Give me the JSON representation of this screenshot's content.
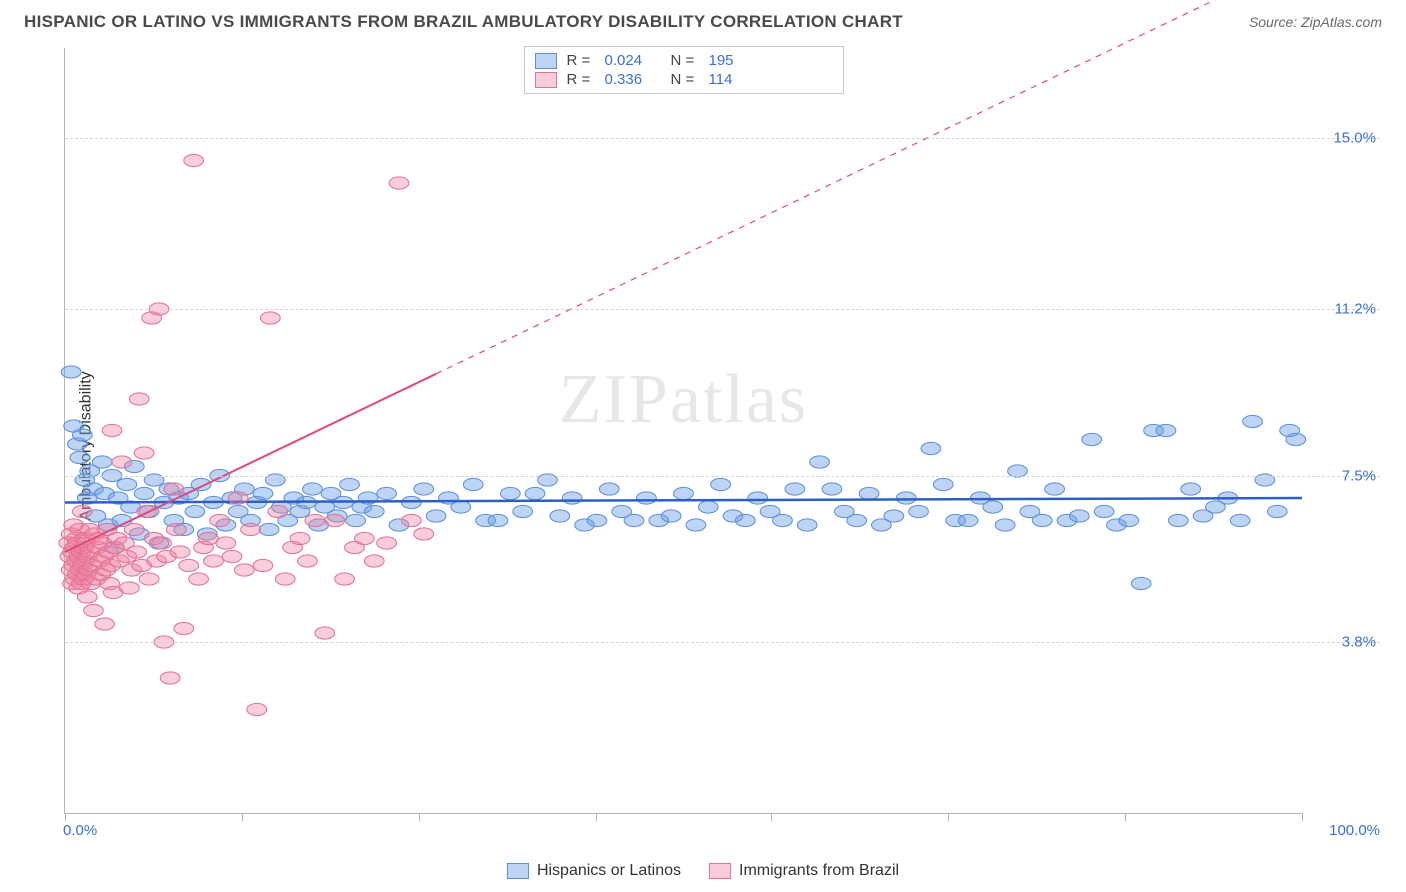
{
  "title": "HISPANIC OR LATINO VS IMMIGRANTS FROM BRAZIL AMBULATORY DISABILITY CORRELATION CHART",
  "source": "Source: ZipAtlas.com",
  "watermark": "ZIPatlas",
  "ylabel": "Ambulatory Disability",
  "chart": {
    "type": "scatter",
    "xlim": [
      0,
      100
    ],
    "ylim": [
      0,
      17
    ],
    "x_tick_positions": [
      0,
      14.3,
      28.6,
      42.9,
      57.1,
      71.4,
      85.7,
      100
    ],
    "x_labels": {
      "min": "0.0%",
      "max": "100.0%"
    },
    "y_gridlines": [
      {
        "value": 3.8,
        "label": "3.8%"
      },
      {
        "value": 7.5,
        "label": "7.5%"
      },
      {
        "value": 11.2,
        "label": "11.2%"
      },
      {
        "value": 15.0,
        "label": "15.0%"
      }
    ],
    "background_color": "#ffffff",
    "grid_color": "#d5d5d5",
    "axis_color": "#b5b5b5",
    "point_radius": 8,
    "series": [
      {
        "name": "Hispanics or Latinos",
        "fill_color": "rgba(108,160,232,0.45)",
        "stroke_color": "#5a8fd8",
        "R": "0.024",
        "N": "195",
        "trend": {
          "x1": 0,
          "y1": 6.9,
          "x2": 100,
          "y2": 7.0,
          "solid_until_x": 100,
          "color": "#2b5fc7",
          "width": 2.5
        },
        "points": [
          [
            0.5,
            9.8
          ],
          [
            0.7,
            8.6
          ],
          [
            1.0,
            8.2
          ],
          [
            1.2,
            7.9
          ],
          [
            1.4,
            8.4
          ],
          [
            1.6,
            7.4
          ],
          [
            1.8,
            7.0
          ],
          [
            2.0,
            7.6
          ],
          [
            2.3,
            7.2
          ],
          [
            2.5,
            6.6
          ],
          [
            3.0,
            7.8
          ],
          [
            3.2,
            7.1
          ],
          [
            3.5,
            6.4
          ],
          [
            3.8,
            7.5
          ],
          [
            4.0,
            5.9
          ],
          [
            4.3,
            7.0
          ],
          [
            4.6,
            6.5
          ],
          [
            5.0,
            7.3
          ],
          [
            5.3,
            6.8
          ],
          [
            5.6,
            7.7
          ],
          [
            6.0,
            6.2
          ],
          [
            6.4,
            7.1
          ],
          [
            6.8,
            6.7
          ],
          [
            7.2,
            7.4
          ],
          [
            7.6,
            6.0
          ],
          [
            8.0,
            6.9
          ],
          [
            8.4,
            7.2
          ],
          [
            8.8,
            6.5
          ],
          [
            9.2,
            7.0
          ],
          [
            9.6,
            6.3
          ],
          [
            10.0,
            7.1
          ],
          [
            10.5,
            6.7
          ],
          [
            11.0,
            7.3
          ],
          [
            11.5,
            6.2
          ],
          [
            12.0,
            6.9
          ],
          [
            12.5,
            7.5
          ],
          [
            13.0,
            6.4
          ],
          [
            13.5,
            7.0
          ],
          [
            14.0,
            6.7
          ],
          [
            14.5,
            7.2
          ],
          [
            15.0,
            6.5
          ],
          [
            15.5,
            6.9
          ],
          [
            16.0,
            7.1
          ],
          [
            16.5,
            6.3
          ],
          [
            17.0,
            7.4
          ],
          [
            17.5,
            6.8
          ],
          [
            18.0,
            6.5
          ],
          [
            18.5,
            7.0
          ],
          [
            19.0,
            6.7
          ],
          [
            19.5,
            6.9
          ],
          [
            20.0,
            7.2
          ],
          [
            20.5,
            6.4
          ],
          [
            21.0,
            6.8
          ],
          [
            21.5,
            7.1
          ],
          [
            22.0,
            6.6
          ],
          [
            22.5,
            6.9
          ],
          [
            23.0,
            7.3
          ],
          [
            23.5,
            6.5
          ],
          [
            24.0,
            6.8
          ],
          [
            24.5,
            7.0
          ],
          [
            25.0,
            6.7
          ],
          [
            26.0,
            7.1
          ],
          [
            27.0,
            6.4
          ],
          [
            28.0,
            6.9
          ],
          [
            29.0,
            7.2
          ],
          [
            30.0,
            6.6
          ],
          [
            31.0,
            7.0
          ],
          [
            32.0,
            6.8
          ],
          [
            33.0,
            7.3
          ],
          [
            34.0,
            6.5
          ],
          [
            35.0,
            6.5
          ],
          [
            36.0,
            7.1
          ],
          [
            37.0,
            6.7
          ],
          [
            38.0,
            7.1
          ],
          [
            39.0,
            7.4
          ],
          [
            40.0,
            6.6
          ],
          [
            41.0,
            7.0
          ],
          [
            42.0,
            6.4
          ],
          [
            43.0,
            6.5
          ],
          [
            44.0,
            7.2
          ],
          [
            45.0,
            6.7
          ],
          [
            46.0,
            6.5
          ],
          [
            47.0,
            7.0
          ],
          [
            48.0,
            6.5
          ],
          [
            49.0,
            6.6
          ],
          [
            50.0,
            7.1
          ],
          [
            51.0,
            6.4
          ],
          [
            52.0,
            6.8
          ],
          [
            53.0,
            7.3
          ],
          [
            54.0,
            6.6
          ],
          [
            55.0,
            6.5
          ],
          [
            56.0,
            7.0
          ],
          [
            57.0,
            6.7
          ],
          [
            58.0,
            6.5
          ],
          [
            59.0,
            7.2
          ],
          [
            60.0,
            6.4
          ],
          [
            61.0,
            7.8
          ],
          [
            62.0,
            7.2
          ],
          [
            63.0,
            6.7
          ],
          [
            64.0,
            6.5
          ],
          [
            65.0,
            7.1
          ],
          [
            66.0,
            6.4
          ],
          [
            67.0,
            6.6
          ],
          [
            68.0,
            7.0
          ],
          [
            69.0,
            6.7
          ],
          [
            70.0,
            8.1
          ],
          [
            71.0,
            7.3
          ],
          [
            72.0,
            6.5
          ],
          [
            73.0,
            6.5
          ],
          [
            74.0,
            7.0
          ],
          [
            75.0,
            6.8
          ],
          [
            76.0,
            6.4
          ],
          [
            77.0,
            7.6
          ],
          [
            78.0,
            6.7
          ],
          [
            79.0,
            6.5
          ],
          [
            80.0,
            7.2
          ],
          [
            81.0,
            6.5
          ],
          [
            82.0,
            6.6
          ],
          [
            83.0,
            8.3
          ],
          [
            84.0,
            6.7
          ],
          [
            85.0,
            6.4
          ],
          [
            86.0,
            6.5
          ],
          [
            87.0,
            5.1
          ],
          [
            88.0,
            8.5
          ],
          [
            89.0,
            8.5
          ],
          [
            90.0,
            6.5
          ],
          [
            91.0,
            7.2
          ],
          [
            92.0,
            6.6
          ],
          [
            93.0,
            6.8
          ],
          [
            94.0,
            7.0
          ],
          [
            95.0,
            6.5
          ],
          [
            96.0,
            8.7
          ],
          [
            97.0,
            7.4
          ],
          [
            98.0,
            6.7
          ],
          [
            99.0,
            8.5
          ],
          [
            99.5,
            8.3
          ]
        ]
      },
      {
        "name": "Immigrants from Brazil",
        "fill_color": "rgba(240,130,160,0.40)",
        "stroke_color": "#e27097",
        "R": "0.336",
        "N": "114",
        "trend": {
          "x1": 0,
          "y1": 5.8,
          "x2": 100,
          "y2": 19.0,
          "solid_until_x": 30,
          "color": "#e04a7c",
          "width": 2
        },
        "points": [
          [
            0.3,
            6.0
          ],
          [
            0.4,
            5.7
          ],
          [
            0.5,
            5.4
          ],
          [
            0.5,
            6.2
          ],
          [
            0.6,
            5.8
          ],
          [
            0.6,
            5.1
          ],
          [
            0.7,
            5.5
          ],
          [
            0.7,
            6.4
          ],
          [
            0.8,
            5.2
          ],
          [
            0.8,
            5.9
          ],
          [
            0.9,
            6.1
          ],
          [
            0.9,
            5.6
          ],
          [
            1.0,
            5.3
          ],
          [
            1.0,
            6.0
          ],
          [
            1.1,
            5.7
          ],
          [
            1.1,
            5.0
          ],
          [
            1.2,
            5.4
          ],
          [
            1.2,
            6.3
          ],
          [
            1.3,
            5.8
          ],
          [
            1.3,
            5.1
          ],
          [
            1.4,
            5.5
          ],
          [
            1.4,
            6.7
          ],
          [
            1.5,
            5.2
          ],
          [
            1.5,
            5.9
          ],
          [
            1.6,
            6.1
          ],
          [
            1.6,
            5.6
          ],
          [
            1.7,
            5.3
          ],
          [
            1.7,
            6.0
          ],
          [
            1.8,
            5.7
          ],
          [
            1.8,
            4.8
          ],
          [
            1.9,
            5.4
          ],
          [
            2.0,
            6.3
          ],
          [
            2.0,
            5.8
          ],
          [
            2.1,
            5.1
          ],
          [
            2.2,
            5.5
          ],
          [
            2.3,
            4.5
          ],
          [
            2.4,
            6.2
          ],
          [
            2.5,
            5.2
          ],
          [
            2.6,
            5.9
          ],
          [
            2.7,
            6.1
          ],
          [
            2.8,
            5.6
          ],
          [
            2.9,
            5.3
          ],
          [
            3.0,
            6.0
          ],
          [
            3.1,
            5.7
          ],
          [
            3.2,
            4.2
          ],
          [
            3.3,
            5.4
          ],
          [
            3.4,
            6.3
          ],
          [
            3.5,
            5.8
          ],
          [
            3.6,
            5.1
          ],
          [
            3.7,
            5.5
          ],
          [
            3.8,
            8.5
          ],
          [
            3.9,
            4.9
          ],
          [
            4.0,
            5.9
          ],
          [
            4.2,
            6.1
          ],
          [
            4.4,
            5.6
          ],
          [
            4.6,
            7.8
          ],
          [
            4.8,
            6.0
          ],
          [
            5.0,
            5.7
          ],
          [
            5.2,
            5.0
          ],
          [
            5.4,
            5.4
          ],
          [
            5.6,
            6.3
          ],
          [
            5.8,
            5.8
          ],
          [
            6.0,
            9.2
          ],
          [
            6.2,
            5.5
          ],
          [
            6.4,
            8.0
          ],
          [
            6.6,
            6.7
          ],
          [
            6.8,
            5.2
          ],
          [
            7.0,
            11.0
          ],
          [
            7.2,
            6.1
          ],
          [
            7.4,
            5.6
          ],
          [
            7.6,
            11.2
          ],
          [
            7.8,
            6.0
          ],
          [
            8.0,
            3.8
          ],
          [
            8.2,
            5.7
          ],
          [
            8.5,
            3.0
          ],
          [
            8.8,
            7.2
          ],
          [
            9.0,
            6.3
          ],
          [
            9.3,
            5.8
          ],
          [
            9.6,
            4.1
          ],
          [
            10.0,
            5.5
          ],
          [
            10.4,
            14.5
          ],
          [
            10.8,
            5.2
          ],
          [
            11.2,
            5.9
          ],
          [
            11.6,
            6.1
          ],
          [
            12.0,
            5.6
          ],
          [
            12.5,
            6.5
          ],
          [
            13.0,
            6.0
          ],
          [
            13.5,
            5.7
          ],
          [
            14.0,
            7.0
          ],
          [
            14.5,
            5.4
          ],
          [
            15.0,
            6.3
          ],
          [
            15.5,
            2.3
          ],
          [
            16.0,
            5.5
          ],
          [
            16.6,
            11.0
          ],
          [
            17.2,
            6.7
          ],
          [
            17.8,
            5.2
          ],
          [
            18.4,
            5.9
          ],
          [
            19.0,
            6.1
          ],
          [
            19.6,
            5.6
          ],
          [
            20.2,
            6.5
          ],
          [
            21.0,
            4.0
          ],
          [
            21.8,
            6.5
          ],
          [
            22.6,
            5.2
          ],
          [
            23.4,
            5.9
          ],
          [
            24.2,
            6.1
          ],
          [
            25.0,
            5.6
          ],
          [
            26.0,
            6.0
          ],
          [
            27.0,
            14.0
          ],
          [
            28.0,
            6.5
          ],
          [
            29.0,
            6.2
          ]
        ]
      }
    ]
  },
  "stats_legend_labels": {
    "R": "R =",
    "N": "N ="
  },
  "legend_items": [
    "Hispanics or Latinos",
    "Immigrants from Brazil"
  ]
}
